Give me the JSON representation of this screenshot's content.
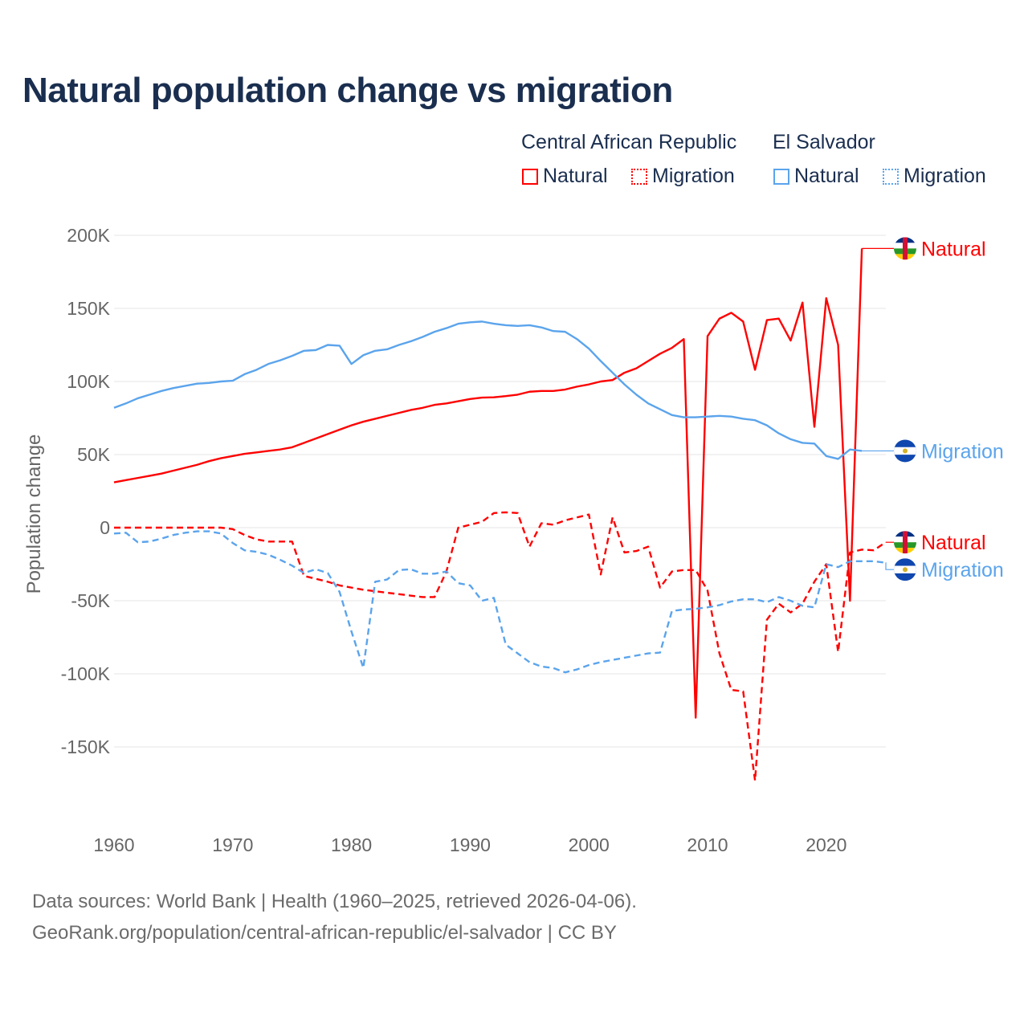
{
  "title": "Natural population change vs migration",
  "legend": {
    "groups": [
      {
        "name": "Central African Republic",
        "items": [
          {
            "label": "Natural",
            "style": "solid",
            "color": "#ff0000"
          },
          {
            "label": "Migration",
            "style": "dotted",
            "color": "#ff0000"
          }
        ]
      },
      {
        "name": "El Salvador",
        "items": [
          {
            "label": "Natural",
            "style": "solid",
            "color": "#5ba4ec"
          },
          {
            "label": "Migration",
            "style": "dotted",
            "color": "#5ba4ec"
          }
        ]
      }
    ]
  },
  "footer": {
    "line1": "Data sources: World Bank | Health (1960–2025, retrieved 2026-04-06).",
    "line2": "GeoRank.org/population/central-african-republic/el-salvador | CC BY"
  },
  "chart_data": {
    "type": "line",
    "title": "Natural population change vs migration",
    "xlabel": "",
    "ylabel": "Population change",
    "xlim": [
      1960,
      2025
    ],
    "ylim": [
      -190000,
      200000
    ],
    "x_ticks": [
      1960,
      1970,
      1980,
      1990,
      2000,
      2010,
      2020
    ],
    "x_tick_labels": [
      "1960",
      "1970",
      "1980",
      "1990",
      "2000",
      "2010",
      "2020"
    ],
    "y_ticks": [
      200000,
      150000,
      100000,
      50000,
      0,
      -50000,
      -100000,
      -150000
    ],
    "y_tick_labels": [
      "200K",
      "150K",
      "100K",
      "50K",
      "0",
      "-50K",
      "-100K",
      "-150K"
    ],
    "grid": true,
    "legend_position": "top-right",
    "series": [
      {
        "name": "Natural",
        "country": "Central African Republic",
        "color": "#ff0000",
        "dash": false,
        "start_year": 1960,
        "unit": "thousands",
        "values": [
          31,
          32.5,
          34,
          35.5,
          37,
          39,
          41,
          43,
          45.5,
          47.5,
          49,
          50.5,
          51.5,
          52.5,
          53.5,
          55,
          58,
          61,
          64,
          67,
          70,
          72.5,
          74.5,
          76.5,
          78.5,
          80.5,
          82,
          84,
          85,
          86.5,
          88,
          89,
          89.2,
          90,
          91,
          93,
          93.5,
          93.5,
          94.5,
          96.5,
          98,
          100,
          101,
          106,
          109,
          114,
          119,
          123,
          129,
          -130,
          131,
          143,
          147,
          141,
          108,
          142,
          143,
          128,
          154,
          69,
          157,
          125,
          -50,
          191
        ]
      },
      {
        "name": "Migration",
        "country": "Central African Republic",
        "color": "#ff0000",
        "dash": true,
        "start_year": 1960,
        "unit": "thousands",
        "values": [
          0,
          0,
          0,
          0,
          0,
          0,
          0,
          0,
          0,
          0,
          -1,
          -5,
          -8,
          -9.5,
          -9.5,
          -9.5,
          -33,
          -35,
          -37,
          -39.5,
          -41,
          -42.5,
          -43.5,
          -44.5,
          -45.5,
          -46.5,
          -47.5,
          -47.5,
          -30,
          0,
          2,
          4,
          10,
          10.5,
          10,
          -13,
          3,
          2,
          5,
          7,
          9,
          -32,
          7,
          -17,
          -16,
          -13,
          -41,
          -30,
          -29,
          -29,
          -43,
          -86,
          -111,
          -112,
          -173,
          -63,
          -52,
          -58,
          -52,
          -37,
          -25,
          -85,
          -17,
          -15,
          -15.5,
          -10
        ]
      },
      {
        "name": "Natural",
        "country": "El Salvador",
        "color": "#5ba4ec",
        "dash": false,
        "start_year": 1960,
        "unit": "thousands",
        "values": [
          82,
          85,
          88.5,
          91,
          93.5,
          95.5,
          97,
          98.5,
          99,
          100,
          100.5,
          105,
          108,
          112,
          114.5,
          117.5,
          121,
          121.5,
          125,
          124.5,
          112,
          118,
          121,
          122,
          125,
          127.5,
          130.5,
          134,
          136.5,
          139.5,
          140.5,
          141,
          139.5,
          138.5,
          138,
          138.5,
          137,
          134.5,
          134,
          129,
          122.5,
          114,
          106,
          98,
          91,
          85,
          81,
          77,
          75.5,
          75.5,
          76,
          76.5,
          76,
          74.5,
          73.5,
          70,
          64.5,
          60.5,
          58,
          57.5,
          49,
          47,
          53.5,
          52.5
        ]
      },
      {
        "name": "Migration",
        "country": "El Salvador",
        "color": "#5ba4ec",
        "dash": true,
        "start_year": 1960,
        "unit": "thousands",
        "values": [
          -4,
          -3.5,
          -10,
          -9.5,
          -7.5,
          -5,
          -3.5,
          -2.5,
          -2.5,
          -4,
          -10.5,
          -15.5,
          -16.5,
          -18.5,
          -22,
          -26,
          -31,
          -28.5,
          -31,
          -44,
          -71,
          -96,
          -37,
          -35.5,
          -29,
          -28.5,
          -31.5,
          -31.5,
          -30,
          -38,
          -39.5,
          -50,
          -48,
          -80,
          -86,
          -92,
          -95,
          -96,
          -99,
          -97,
          -94,
          -92,
          -90.5,
          -89,
          -87.5,
          -86,
          -85.5,
          -57,
          -56,
          -55.5,
          -54.5,
          -53,
          -50.5,
          -49,
          -49,
          -51,
          -47.5,
          -50,
          -53.5,
          -54.5,
          -25,
          -27,
          -23,
          -23,
          -23,
          -24
        ]
      }
    ],
    "end_labels": [
      "Natural",
      "Natural",
      "Migration",
      "Migration"
    ]
  }
}
